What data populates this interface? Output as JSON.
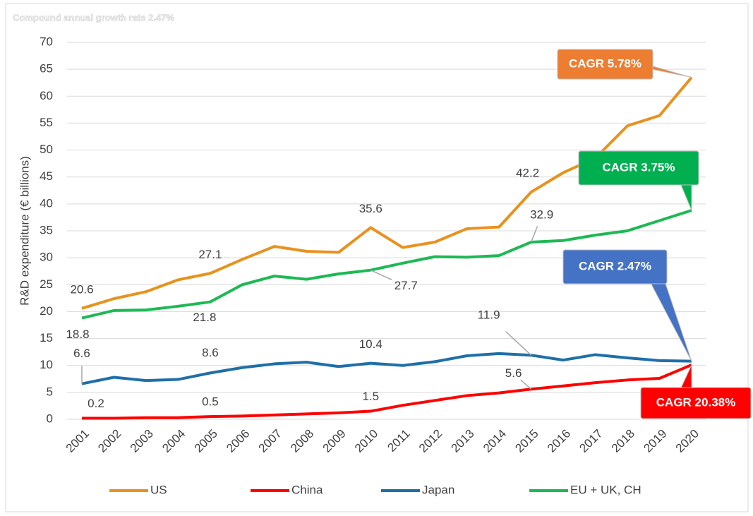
{
  "chart_data": {
    "type": "line",
    "subtitle": "Compound annual growth rate 2.47%",
    "y_label": "R&D expenditure (€ billions)",
    "categories": [
      "2001",
      "2002",
      "2003",
      "2004",
      "2005",
      "2006",
      "2007",
      "2008",
      "2009",
      "2010",
      "2011",
      "2012",
      "2013",
      "2014",
      "2015",
      "2016",
      "2017",
      "2018",
      "2019",
      "2020"
    ],
    "ylim": [
      0,
      70
    ],
    "yticks": [
      0,
      5,
      10,
      15,
      20,
      25,
      30,
      35,
      40,
      45,
      50,
      55,
      60,
      65,
      70
    ],
    "grid": true,
    "legend": "bottom",
    "series": [
      {
        "name": "US",
        "color": "#e8921e",
        "values": [
          20.6,
          22.4,
          23.7,
          25.9,
          27.1,
          29.7,
          32.1,
          31.2,
          31.0,
          35.6,
          31.9,
          32.9,
          35.4,
          35.7,
          42.2,
          45.8,
          48.5,
          54.5,
          56.4,
          63.5
        ],
        "value_labels": [
          "20.6",
          null,
          null,
          null,
          "27.1",
          null,
          null,
          null,
          null,
          "35.6",
          null,
          null,
          null,
          null,
          "42.2",
          null,
          null,
          null,
          null,
          null
        ]
      },
      {
        "name": "China",
        "color": "#ff0000",
        "values": [
          0.2,
          0.2,
          0.3,
          0.3,
          0.5,
          0.6,
          0.8,
          1.0,
          1.2,
          1.5,
          2.6,
          3.5,
          4.4,
          4.9,
          5.6,
          6.2,
          6.8,
          7.3,
          7.6,
          10.1
        ],
        "value_labels": [
          "0.2",
          null,
          null,
          null,
          "0.5",
          null,
          null,
          null,
          null,
          "1.5",
          null,
          null,
          null,
          null,
          "5.6",
          null,
          null,
          null,
          null,
          null
        ]
      },
      {
        "name": "Japan",
        "color": "#1f6fa8",
        "values": [
          6.6,
          7.8,
          7.2,
          7.4,
          8.6,
          9.6,
          10.3,
          10.6,
          9.8,
          10.4,
          10.0,
          10.7,
          11.8,
          12.2,
          11.9,
          11.0,
          12.0,
          11.4,
          10.9,
          10.8
        ],
        "value_labels": [
          "6.6",
          null,
          null,
          null,
          "8.6",
          null,
          null,
          null,
          null,
          "10.4",
          null,
          null,
          null,
          null,
          "11.9",
          null,
          null,
          null,
          null,
          null
        ]
      },
      {
        "name": "EU + UK, CH",
        "color": "#1db954",
        "values": [
          18.8,
          20.2,
          20.3,
          21.0,
          21.8,
          25.0,
          26.6,
          26.0,
          27.0,
          27.7,
          29.0,
          30.2,
          30.1,
          30.4,
          32.9,
          33.2,
          34.2,
          35.0,
          36.9,
          38.8
        ],
        "value_labels": [
          "18.8",
          null,
          null,
          null,
          "21.8",
          null,
          null,
          null,
          null,
          "27.7",
          null,
          null,
          null,
          null,
          "32.9",
          null,
          null,
          null,
          null,
          null
        ]
      }
    ],
    "annotations": [
      {
        "text": "CAGR 5.78%",
        "color": "#ed7d31"
      },
      {
        "text": "CAGR 3.75%",
        "color": "#00b050"
      },
      {
        "text": "CAGR 2.47%",
        "color": "#4472c4"
      },
      {
        "text": "CAGR 20.38%",
        "color": "#ff0000"
      }
    ]
  }
}
